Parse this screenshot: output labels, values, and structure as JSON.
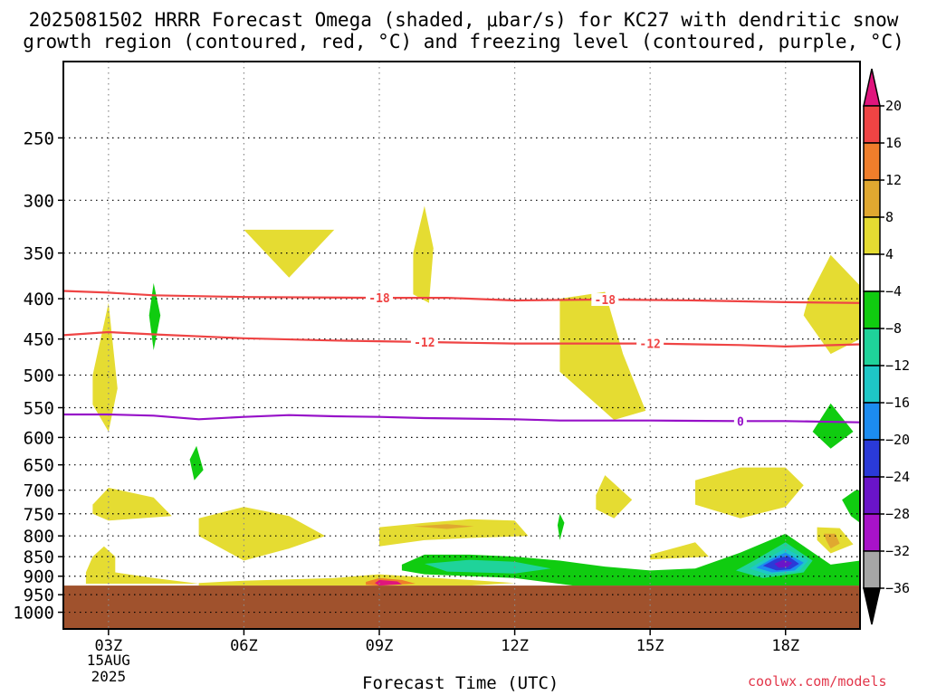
{
  "title_line1": "2025081502 HRRR Forecast Omega (shaded, μbar/s) for KC27 with dendritic snow",
  "title_line2": "growth region (contoured, red, °C) and freezing level (contoured, purple, °C)",
  "credit": "coolwx.com/models",
  "chart_data": {
    "type": "heatmap",
    "title": "2025081502 HRRR Forecast Omega (shaded, μbar/s) for KC27 with dendritic snow growth region (contoured, red, °C) and freezing level (contoured, purple, °C)",
    "xlabel": "Forecast Time (UTC)",
    "ylabel": "",
    "y_scale": "log (pressure)",
    "y_reversed": true,
    "ylim_hpa": [
      200,
      1050
    ],
    "y_ticks": [
      250,
      300,
      350,
      400,
      450,
      500,
      550,
      600,
      650,
      700,
      750,
      800,
      850,
      900,
      950,
      1000
    ],
    "xlim_hours": [
      2.0,
      19.65
    ],
    "x_ticks": [
      {
        "hour": 3,
        "label": "03Z",
        "sublabel1": "15AUG",
        "sublabel2": "2025"
      },
      {
        "hour": 6,
        "label": "06Z"
      },
      {
        "hour": 9,
        "label": "09Z"
      },
      {
        "hour": 12,
        "label": "12Z"
      },
      {
        "hour": 15,
        "label": "15Z"
      },
      {
        "hour": 18,
        "label": "18Z"
      }
    ],
    "grid": true,
    "terrain": {
      "surface_hpa": 925,
      "color": "#a0522d"
    },
    "colorbar": {
      "levels": [
        -36,
        -32,
        -28,
        -24,
        -20,
        -16,
        -12,
        -8,
        -4,
        4,
        8,
        12,
        16,
        20
      ],
      "label_levels": [
        20,
        16,
        12,
        8,
        4,
        -4,
        -8,
        -12,
        -16,
        -20,
        -24,
        -28,
        -32,
        -36
      ],
      "bins": [
        {
          "range": ">20",
          "color": "#e0157d"
        },
        {
          "range": "16 to 20",
          "color": "#ef4444"
        },
        {
          "range": "12 to 16",
          "color": "#ef7e2b"
        },
        {
          "range": "8 to 12",
          "color": "#e0a830"
        },
        {
          "range": "4 to 8",
          "color": "#e5dc32"
        },
        {
          "range": "-4 to 4",
          "color": "#ffffff"
        },
        {
          "range": "-8 to -4",
          "color": "#10cc10"
        },
        {
          "range": "-12 to -8",
          "color": "#1fd39a"
        },
        {
          "range": "-16 to -12",
          "color": "#1ec7c7"
        },
        {
          "range": "-20 to -16",
          "color": "#1c8cf0"
        },
        {
          "range": "-24 to -20",
          "color": "#2a3ad8"
        },
        {
          "range": "-28 to -24",
          "color": "#6a14c8"
        },
        {
          "range": "-32 to -28",
          "color": "#a812c8"
        },
        {
          "range": "-36 to -32",
          "color": "#a6a6a6"
        },
        {
          "range": "<-36",
          "color": "#000000"
        }
      ]
    },
    "contours": [
      {
        "name": "-18",
        "kind": "isotherm",
        "color": "#ef4444",
        "labels": [
          {
            "hour": 9.0
          },
          {
            "hour": 14.0
          }
        ],
        "points": [
          [
            2.0,
            391
          ],
          [
            3.0,
            393
          ],
          [
            4.0,
            396
          ],
          [
            6.0,
            398
          ],
          [
            9.0,
            399
          ],
          [
            10.5,
            399
          ],
          [
            12.0,
            402
          ],
          [
            14.0,
            401
          ],
          [
            16.0,
            402
          ],
          [
            18.0,
            404
          ],
          [
            19.65,
            405
          ]
        ]
      },
      {
        "name": "-12",
        "kind": "isotherm",
        "color": "#ef4444",
        "labels": [
          {
            "hour": 10.0
          },
          {
            "hour": 15.0
          }
        ],
        "points": [
          [
            2.0,
            445
          ],
          [
            3.0,
            441
          ],
          [
            4.0,
            444
          ],
          [
            6.0,
            449
          ],
          [
            8.0,
            452
          ],
          [
            9.0,
            453
          ],
          [
            11.0,
            455
          ],
          [
            12.0,
            456
          ],
          [
            15.0,
            456
          ],
          [
            17.0,
            458
          ],
          [
            18.0,
            460
          ],
          [
            19.65,
            457
          ]
        ]
      },
      {
        "name": "0",
        "kind": "freezing level",
        "color": "#9610c8",
        "labels": [
          {
            "hour": 17.0
          }
        ],
        "points": [
          [
            2.0,
            561
          ],
          [
            3.0,
            561
          ],
          [
            4.0,
            563
          ],
          [
            5.0,
            569
          ],
          [
            6.0,
            565
          ],
          [
            7.0,
            562
          ],
          [
            8.0,
            564
          ],
          [
            9.0,
            565
          ],
          [
            10.0,
            567
          ],
          [
            12.0,
            569
          ],
          [
            13.0,
            571
          ],
          [
            15.0,
            571
          ],
          [
            17.0,
            572
          ],
          [
            18.0,
            572
          ],
          [
            19.65,
            574
          ]
        ]
      }
    ],
    "omega_regions": [
      {
        "color": "#e5dc32",
        "points": [
          [
            6.0,
            327
          ],
          [
            8.0,
            327
          ],
          [
            7.0,
            376
          ]
        ]
      },
      {
        "color": "#e5dc32",
        "points": [
          [
            9.75,
            350
          ],
          [
            10.0,
            305
          ],
          [
            10.2,
            345
          ],
          [
            10.1,
            405
          ],
          [
            9.75,
            395
          ]
        ]
      },
      {
        "color": "#e5dc32",
        "points": [
          [
            2.65,
            500
          ],
          [
            3.0,
            405
          ],
          [
            3.2,
            520
          ],
          [
            3.0,
            590
          ],
          [
            2.65,
            545
          ]
        ]
      },
      {
        "color": "#e5dc32",
        "points": [
          [
            13.0,
            400
          ],
          [
            14.0,
            392
          ],
          [
            14.4,
            470
          ],
          [
            14.9,
            555
          ],
          [
            14.2,
            570
          ],
          [
            13.0,
            495
          ]
        ]
      },
      {
        "color": "#e5dc32",
        "points": [
          [
            18.5,
            400
          ],
          [
            19.0,
            352
          ],
          [
            19.65,
            385
          ],
          [
            19.65,
            450
          ],
          [
            19.0,
            470
          ],
          [
            18.4,
            420
          ]
        ]
      },
      {
        "color": "#10cc10",
        "points": [
          [
            3.9,
            420
          ],
          [
            4.0,
            382
          ],
          [
            4.15,
            420
          ],
          [
            4.0,
            465
          ]
        ]
      },
      {
        "color": "#10cc10",
        "points": [
          [
            18.6,
            590
          ],
          [
            19.0,
            543
          ],
          [
            19.5,
            590
          ],
          [
            19.0,
            620
          ]
        ]
      },
      {
        "color": "#10cc10",
        "points": [
          [
            4.8,
            640
          ],
          [
            4.95,
            615
          ],
          [
            5.1,
            660
          ],
          [
            4.9,
            680
          ]
        ]
      },
      {
        "color": "#e5dc32",
        "points": [
          [
            2.65,
            730
          ],
          [
            3.0,
            695
          ],
          [
            4.0,
            715
          ],
          [
            4.4,
            755
          ],
          [
            3.0,
            765
          ],
          [
            2.65,
            750
          ]
        ]
      },
      {
        "color": "#e5dc32",
        "points": [
          [
            5.0,
            760
          ],
          [
            6.0,
            735
          ],
          [
            7.0,
            755
          ],
          [
            7.8,
            800
          ],
          [
            7.0,
            830
          ],
          [
            6.0,
            860
          ],
          [
            5.0,
            800
          ]
        ]
      },
      {
        "color": "#e5dc32",
        "points": [
          [
            13.8,
            710
          ],
          [
            14.0,
            670
          ],
          [
            14.6,
            720
          ],
          [
            14.2,
            760
          ],
          [
            13.8,
            740
          ]
        ]
      },
      {
        "color": "#e5dc32",
        "points": [
          [
            16.0,
            680
          ],
          [
            17.0,
            655
          ],
          [
            18.0,
            655
          ],
          [
            18.4,
            690
          ],
          [
            18.0,
            735
          ],
          [
            17.0,
            760
          ],
          [
            16.0,
            730
          ]
        ]
      },
      {
        "color": "#10cc10",
        "points": [
          [
            19.25,
            720
          ],
          [
            19.55,
            700
          ],
          [
            19.65,
            700
          ],
          [
            19.65,
            770
          ],
          [
            19.45,
            755
          ]
        ]
      },
      {
        "color": "#10cc10",
        "points": [
          [
            13.0,
            750
          ],
          [
            13.1,
            770
          ],
          [
            13.0,
            810
          ],
          [
            12.95,
            775
          ]
        ]
      },
      {
        "color": "#e5dc32",
        "points": [
          [
            9.0,
            780
          ],
          [
            10.0,
            770
          ],
          [
            11.0,
            762
          ],
          [
            12.0,
            765
          ],
          [
            12.3,
            800
          ],
          [
            11.0,
            805
          ],
          [
            10.0,
            810
          ],
          [
            9.0,
            825
          ]
        ]
      },
      {
        "color": "#e0a830",
        "points": [
          [
            9.75,
            778
          ],
          [
            10.5,
            773
          ],
          [
            11.1,
            778
          ],
          [
            10.5,
            784
          ]
        ]
      },
      {
        "color": "#e5dc32",
        "points": [
          [
            15.0,
            845
          ],
          [
            16.0,
            815
          ],
          [
            16.3,
            850
          ],
          [
            15.0,
            857
          ]
        ]
      },
      {
        "color": "#e5dc32",
        "points": [
          [
            18.7,
            780
          ],
          [
            19.2,
            782
          ],
          [
            19.5,
            820
          ],
          [
            19.0,
            842
          ],
          [
            18.7,
            810
          ]
        ]
      },
      {
        "color": "#e0a830",
        "points": [
          [
            18.85,
            795
          ],
          [
            19.1,
            795
          ],
          [
            19.2,
            818
          ],
          [
            19.0,
            830
          ],
          [
            18.9,
            810
          ]
        ]
      },
      {
        "color": "#e5dc32",
        "points": [
          [
            2.5,
            890
          ],
          [
            2.65,
            850
          ],
          [
            2.9,
            825
          ],
          [
            3.15,
            850
          ],
          [
            3.15,
            890
          ],
          [
            4.0,
            905
          ],
          [
            5.0,
            920
          ],
          [
            2.5,
            920
          ]
        ]
      },
      {
        "color": "#e5dc32",
        "points": [
          [
            5.0,
            918
          ],
          [
            6.0,
            912
          ],
          [
            8.0,
            905
          ],
          [
            9.0,
            895
          ],
          [
            10.0,
            903
          ],
          [
            11.0,
            910
          ],
          [
            12.0,
            918
          ],
          [
            11.0,
            925
          ],
          [
            5.0,
            925
          ]
        ]
      },
      {
        "color": "#ef7e2b",
        "points": [
          [
            8.7,
            915
          ],
          [
            9.0,
            905
          ],
          [
            9.5,
            910
          ],
          [
            9.8,
            920
          ],
          [
            9.0,
            925
          ],
          [
            8.7,
            923
          ]
        ]
      },
      {
        "color": "#e0157d",
        "points": [
          [
            8.9,
            918
          ],
          [
            9.0,
            910
          ],
          [
            9.4,
            914
          ],
          [
            9.5,
            922
          ],
          [
            9.0,
            925
          ]
        ]
      },
      {
        "color": "#10cc10",
        "points": [
          [
            9.5,
            870
          ],
          [
            10.0,
            845
          ],
          [
            11.0,
            845
          ],
          [
            12.0,
            850
          ],
          [
            13.0,
            860
          ],
          [
            14.0,
            875
          ],
          [
            15.0,
            885
          ],
          [
            16.0,
            880
          ],
          [
            17.0,
            840
          ],
          [
            18.0,
            795
          ],
          [
            19.0,
            870
          ],
          [
            19.65,
            860
          ],
          [
            19.65,
            925
          ],
          [
            13.3,
            925
          ],
          [
            12.0,
            905
          ],
          [
            10.0,
            895
          ],
          [
            9.5,
            885
          ]
        ]
      },
      {
        "color": "#1fd39a",
        "points": [
          [
            10.0,
            868
          ],
          [
            11.0,
            858
          ],
          [
            12.0,
            863
          ],
          [
            12.8,
            880
          ],
          [
            12.0,
            893
          ],
          [
            10.5,
            888
          ]
        ]
      },
      {
        "color": "#1fd39a",
        "points": [
          [
            16.9,
            885
          ],
          [
            17.3,
            860
          ],
          [
            18.0,
            815
          ],
          [
            18.6,
            860
          ],
          [
            18.4,
            890
          ],
          [
            17.5,
            905
          ]
        ]
      },
      {
        "color": "#1ec7c7",
        "points": [
          [
            17.2,
            880
          ],
          [
            17.5,
            860
          ],
          [
            18.0,
            830
          ],
          [
            18.5,
            860
          ],
          [
            18.3,
            887
          ],
          [
            17.6,
            895
          ]
        ]
      },
      {
        "color": "#1c8cf0",
        "points": [
          [
            17.35,
            878
          ],
          [
            17.7,
            855
          ],
          [
            18.0,
            840
          ],
          [
            18.4,
            865
          ],
          [
            18.2,
            885
          ],
          [
            17.7,
            890
          ]
        ]
      },
      {
        "color": "#2a3ad8",
        "points": [
          [
            17.5,
            873
          ],
          [
            17.8,
            855
          ],
          [
            18.05,
            848
          ],
          [
            18.3,
            868
          ],
          [
            18.1,
            882
          ],
          [
            17.8,
            885
          ]
        ]
      },
      {
        "color": "#6a14c8",
        "points": [
          [
            17.75,
            868
          ],
          [
            17.95,
            858
          ],
          [
            18.15,
            865
          ],
          [
            18.05,
            877
          ],
          [
            17.85,
            878
          ]
        ]
      }
    ]
  }
}
